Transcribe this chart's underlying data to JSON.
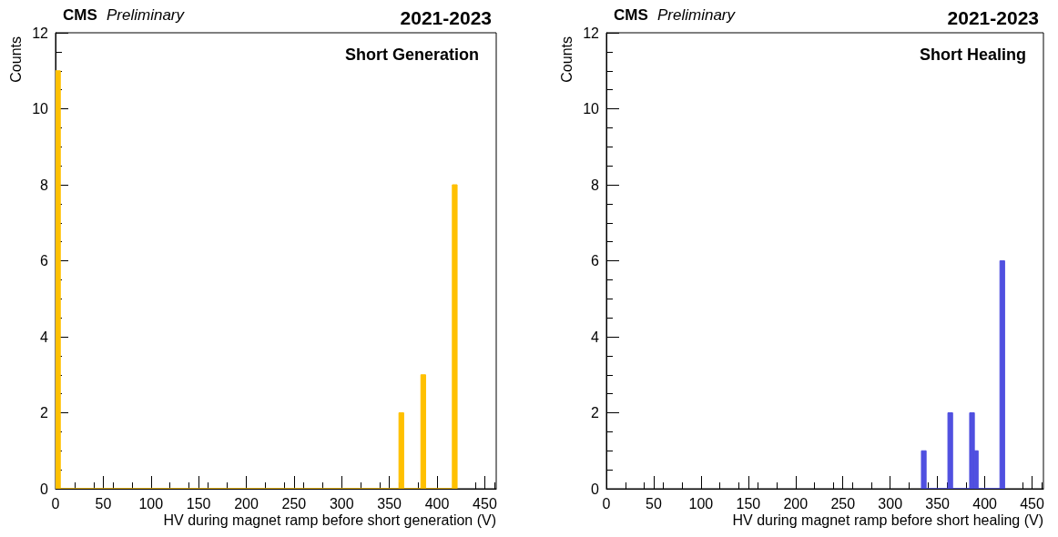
{
  "chart_data": [
    {
      "type": "histogram",
      "title": "2021-2023",
      "subtitle": "Short Generation",
      "annotations": [
        "CMS",
        "Preliminary"
      ],
      "xlabel": "HV during magnet ramp before short generation (V)",
      "ylabel": "Counts",
      "bins": [
        0,
        5,
        360,
        365,
        383,
        388,
        416,
        421
      ],
      "values": [
        11,
        0,
        2,
        0,
        3,
        0,
        8
      ],
      "color": "#ffc000",
      "xlim": [
        0,
        462
      ],
      "xticks": [
        0,
        50,
        100,
        150,
        200,
        250,
        300,
        350,
        400,
        450
      ],
      "ylim": [
        0,
        12
      ],
      "yticks": [
        0,
        2,
        4,
        6,
        8,
        10,
        12
      ],
      "grid": false
    },
    {
      "type": "histogram",
      "title": "2021-2023",
      "subtitle": "Short Healing",
      "annotations": [
        "CMS",
        "Preliminary"
      ],
      "xlabel": "HV during magnet ramp before short healing (V)",
      "ylabel": "Counts",
      "bins": [
        333,
        338,
        361,
        366,
        384,
        389,
        393,
        416,
        421
      ],
      "values": [
        1,
        0,
        2,
        0,
        2,
        1,
        0,
        6
      ],
      "color": "#5050e0",
      "xlim": [
        0,
        462
      ],
      "xticks": [
        0,
        50,
        100,
        150,
        200,
        250,
        300,
        350,
        400,
        450
      ],
      "ylim": [
        0,
        12
      ],
      "yticks": [
        0,
        2,
        4,
        6,
        8,
        10,
        12
      ],
      "grid": false
    }
  ]
}
